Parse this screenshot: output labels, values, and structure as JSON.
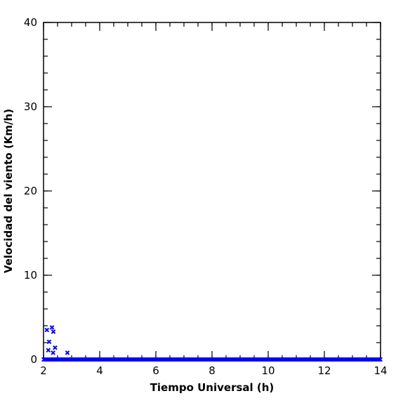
{
  "chart_data": {
    "type": "scatter",
    "xlabel": "Tiempo Universal (h)",
    "ylabel": "Velocidad del viento (Km/h)",
    "xlim": [
      2,
      14
    ],
    "ylim": [
      0,
      40
    ],
    "x_ticks": [
      2,
      4,
      6,
      8,
      10,
      12,
      14
    ],
    "y_ticks": [
      0,
      10,
      20,
      30,
      40
    ],
    "x_minor_step": 0.5,
    "y_minor_step": 2,
    "grid": false,
    "marker": "x",
    "color": "#0000ff",
    "points": [
      {
        "x": 2.12,
        "y": 3.5
      },
      {
        "x": 2.17,
        "y": 1.1
      },
      {
        "x": 2.2,
        "y": 2.1
      },
      {
        "x": 2.3,
        "y": 3.8
      },
      {
        "x": 2.35,
        "y": 3.3
      },
      {
        "x": 2.34,
        "y": 0.8
      },
      {
        "x": 2.41,
        "y": 1.4
      },
      {
        "x": 2.85,
        "y": 0.8
      }
    ],
    "baseline": {
      "x_start": 2.0,
      "x_end": 14.0,
      "step": 0.02,
      "y": 0
    }
  }
}
